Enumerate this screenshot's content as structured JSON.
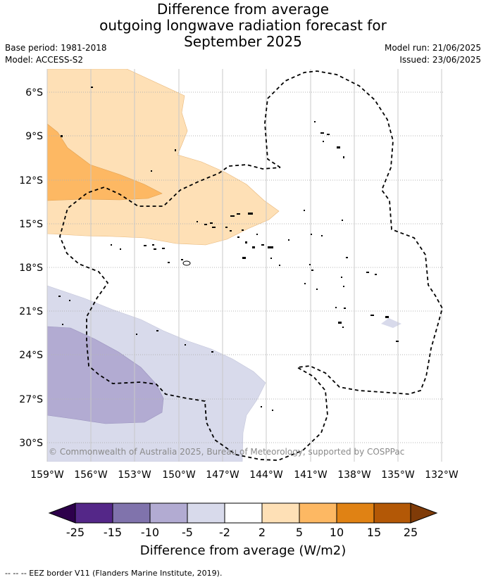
{
  "title": {
    "line1": "Difference from average",
    "line2": "outgoing longwave radiation forecast for",
    "line3": "September 2025"
  },
  "meta": {
    "base_period": "Base period: 1981-2018",
    "model": "Model: ACCESS-S2",
    "model_run": "Model run: 21/06/2025",
    "issued": "Issued: 23/06/2025"
  },
  "axes": {
    "lat_labels": [
      "6°S",
      "9°S",
      "12°S",
      "15°S",
      "18°S",
      "21°S",
      "24°S",
      "27°S",
      "30°S"
    ],
    "lon_labels": [
      "159°W",
      "156°W",
      "153°W",
      "150°W",
      "147°W",
      "144°W",
      "141°W",
      "138°W",
      "135°W",
      "132°W"
    ]
  },
  "copyright": "© Commonwealth of Australia 2025, Bureau of Meteorology, supported by COSPPac",
  "colorbar": {
    "title": "Difference from average (W/m2)",
    "tick_labels": [
      "-25",
      "-15",
      "-10",
      "-5",
      "-2",
      "2",
      "5",
      "10",
      "15",
      "25"
    ],
    "under_color": "#2d004b",
    "over_color": "#7f3b08",
    "colors": [
      "#542788",
      "#8073ac",
      "#b2abd2",
      "#d8daeb",
      "#ffffff",
      "#fee0b6",
      "#fdb863",
      "#e08214",
      "#b35806"
    ]
  },
  "footer": "--  --  -- EEZ border V11 (Flanders Marine Institute, 2019)."
}
